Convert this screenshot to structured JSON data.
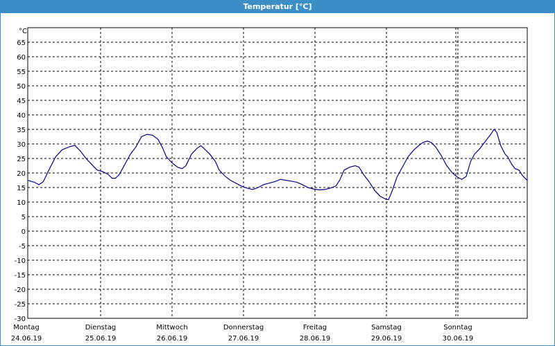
{
  "chart_data": {
    "type": "line",
    "title": "Temperatur [°C]",
    "ylabel": "°C",
    "xlabel": "",
    "ylim": [
      -30,
      70
    ],
    "yticks": [
      65,
      60,
      55,
      50,
      45,
      40,
      35,
      30,
      25,
      20,
      15,
      10,
      5,
      0,
      -5,
      -10,
      -15,
      -20,
      -25,
      -30
    ],
    "grid": true,
    "days": [
      {
        "weekday": "Montag",
        "date": "24.06.19"
      },
      {
        "weekday": "Dienstag",
        "date": "25.06.19"
      },
      {
        "weekday": "Mittwoch",
        "date": "26.06.19"
      },
      {
        "weekday": "Donnerstag",
        "date": "27.06.19"
      },
      {
        "weekday": "Freitag",
        "date": "28.06.19"
      },
      {
        "weekday": "Samstag",
        "date": "29.06.19"
      },
      {
        "weekday": "Sonntag",
        "date": "30.06.19"
      }
    ],
    "series": [
      {
        "color": "#00008b",
        "points": [
          [
            0.0,
            17.5
          ],
          [
            0.05,
            17.2
          ],
          [
            0.12,
            16.8
          ],
          [
            0.2,
            16.0
          ],
          [
            0.28,
            17.0
          ],
          [
            0.38,
            21.0
          ],
          [
            0.5,
            25.5
          ],
          [
            0.62,
            28.0
          ],
          [
            0.75,
            29.0
          ],
          [
            0.85,
            29.5
          ],
          [
            0.95,
            27.5
          ],
          [
            1.05,
            25.0
          ],
          [
            1.15,
            23.0
          ],
          [
            1.25,
            21.0
          ],
          [
            1.35,
            20.5
          ],
          [
            1.45,
            19.5
          ],
          [
            1.52,
            18.2
          ],
          [
            1.58,
            18.2
          ],
          [
            1.65,
            19.5
          ],
          [
            1.75,
            23.0
          ],
          [
            1.85,
            26.5
          ],
          [
            1.95,
            29.0
          ],
          [
            2.05,
            32.5
          ],
          [
            2.15,
            33.3
          ],
          [
            2.25,
            33.0
          ],
          [
            2.35,
            31.5
          ],
          [
            2.42,
            29.0
          ],
          [
            2.5,
            25.5
          ],
          [
            2.6,
            23.5
          ],
          [
            2.7,
            22.0
          ],
          [
            2.78,
            21.5
          ],
          [
            2.85,
            22.5
          ],
          [
            2.95,
            26.5
          ],
          [
            3.05,
            28.5
          ],
          [
            3.12,
            29.4
          ],
          [
            3.2,
            28.0
          ],
          [
            3.28,
            26.5
          ],
          [
            3.38,
            24.0
          ],
          [
            3.45,
            21.0
          ],
          [
            3.55,
            19.0
          ],
          [
            3.65,
            17.5
          ],
          [
            3.75,
            16.5
          ],
          [
            3.85,
            15.5
          ],
          [
            3.95,
            14.8
          ],
          [
            4.05,
            14.3
          ],
          [
            4.15,
            15.0
          ],
          [
            4.25,
            16.0
          ],
          [
            4.35,
            16.5
          ],
          [
            4.45,
            17.0
          ],
          [
            4.55,
            17.8
          ],
          [
            4.65,
            17.5
          ],
          [
            4.75,
            17.2
          ],
          [
            4.85,
            16.8
          ],
          [
            4.95,
            16.0
          ],
          [
            5.05,
            15.0
          ],
          [
            5.15,
            14.5
          ],
          [
            5.25,
            14.2
          ],
          [
            5.35,
            14.3
          ],
          [
            5.45,
            14.8
          ],
          [
            5.55,
            15.5
          ],
          [
            5.62,
            17.5
          ],
          [
            5.7,
            21.0
          ],
          [
            5.8,
            22.0
          ],
          [
            5.9,
            22.5
          ],
          [
            5.97,
            22.0
          ],
          [
            6.05,
            19.5
          ],
          [
            6.15,
            17.0
          ],
          [
            6.25,
            14.0
          ],
          [
            6.35,
            12.0
          ],
          [
            6.45,
            11.0
          ],
          [
            6.5,
            10.8
          ],
          [
            6.57,
            14.0
          ],
          [
            6.65,
            18.5
          ],
          [
            6.75,
            22.0
          ],
          [
            6.85,
            25.5
          ],
          [
            6.95,
            27.8
          ],
          [
            7.05,
            29.5
          ],
          [
            7.12,
            30.5
          ],
          [
            7.2,
            31.0
          ],
          [
            7.27,
            30.5
          ],
          [
            7.35,
            29.0
          ],
          [
            7.45,
            26.0
          ],
          [
            7.55,
            22.5
          ],
          [
            7.65,
            20.0
          ],
          [
            7.75,
            18.5
          ],
          [
            7.82,
            17.8
          ],
          [
            7.9,
            18.8
          ],
          [
            7.98,
            24.0
          ],
          [
            8.05,
            26.5
          ],
          [
            8.15,
            28.5
          ],
          [
            8.25,
            31.0
          ],
          [
            8.35,
            33.5
          ],
          [
            8.4,
            35.0
          ],
          [
            8.45,
            34.0
          ],
          [
            8.52,
            29.5
          ],
          [
            8.6,
            26.5
          ],
          [
            8.65,
            25.5
          ],
          [
            8.72,
            23.0
          ],
          [
            8.78,
            21.5
          ],
          [
            8.85,
            21.0
          ],
          [
            8.92,
            19.0
          ],
          [
            8.98,
            17.8
          ],
          [
            9.0,
            17.5
          ]
        ]
      }
    ]
  }
}
